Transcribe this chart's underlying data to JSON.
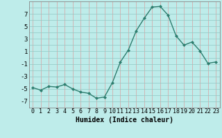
{
  "x": [
    0,
    1,
    2,
    3,
    4,
    5,
    6,
    7,
    8,
    9,
    10,
    11,
    12,
    13,
    14,
    15,
    16,
    17,
    18,
    19,
    20,
    21,
    22,
    23
  ],
  "y": [
    -4.8,
    -5.2,
    -4.6,
    -4.7,
    -4.3,
    -5.0,
    -5.5,
    -5.7,
    -6.5,
    -6.3,
    -4.0,
    -0.7,
    1.2,
    4.3,
    6.3,
    8.1,
    8.2,
    6.8,
    3.5,
    2.0,
    2.5,
    1.1,
    -0.9,
    -0.7
  ],
  "line_color": "#2d7d6e",
  "marker": "D",
  "marker_size": 2.2,
  "bg_color": "#beecea",
  "xlabel": "Humidex (Indice chaleur)",
  "ylim": [
    -8,
    9
  ],
  "xlim": [
    -0.5,
    23.5
  ],
  "yticks": [
    -7,
    -5,
    -3,
    -1,
    1,
    3,
    5,
    7
  ],
  "xticks": [
    0,
    1,
    2,
    3,
    4,
    5,
    6,
    7,
    8,
    9,
    10,
    11,
    12,
    13,
    14,
    15,
    16,
    17,
    18,
    19,
    20,
    21,
    22,
    23
  ],
  "xlabel_fontsize": 7,
  "tick_fontsize": 6,
  "line_width": 1.0,
  "grid_x_color": "#d8a0a0",
  "grid_y_color": "#90c8c4"
}
